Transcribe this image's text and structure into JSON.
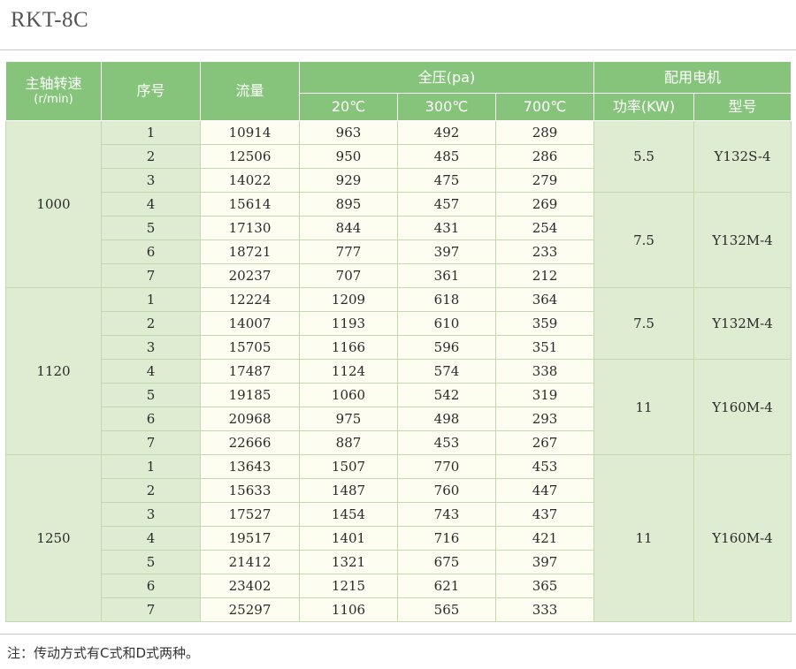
{
  "title": "RKT-8C",
  "headers": {
    "speed": "主轴转速",
    "speed_unit": "(r/min)",
    "no": "序号",
    "flow": "流量",
    "pressure": "全压(pa)",
    "motor": "配用电机",
    "t20": "20℃",
    "t300": "300℃",
    "t700": "700℃",
    "power": "功率(KW)",
    "model": "型号"
  },
  "groups": [
    {
      "speed": "1000",
      "motors": [
        {
          "power": "5.5",
          "model": "Y132S-4"
        },
        {
          "power": "7.5",
          "model": "Y132M-4"
        }
      ],
      "rows": [
        {
          "no": "1",
          "flow": "10914",
          "p20": "963",
          "p300": "492",
          "p700": "289"
        },
        {
          "no": "2",
          "flow": "12506",
          "p20": "950",
          "p300": "485",
          "p700": "286"
        },
        {
          "no": "3",
          "flow": "14022",
          "p20": "929",
          "p300": "475",
          "p700": "279"
        },
        {
          "no": "4",
          "flow": "15614",
          "p20": "895",
          "p300": "457",
          "p700": "269"
        },
        {
          "no": "5",
          "flow": "17130",
          "p20": "844",
          "p300": "431",
          "p700": "254"
        },
        {
          "no": "6",
          "flow": "18721",
          "p20": "777",
          "p300": "397",
          "p700": "233"
        },
        {
          "no": "7",
          "flow": "20237",
          "p20": "707",
          "p300": "361",
          "p700": "212"
        }
      ]
    },
    {
      "speed": "1120",
      "motors": [
        {
          "power": "7.5",
          "model": "Y132M-4"
        },
        {
          "power": "11",
          "model": "Y160M-4"
        }
      ],
      "rows": [
        {
          "no": "1",
          "flow": "12224",
          "p20": "1209",
          "p300": "618",
          "p700": "364"
        },
        {
          "no": "2",
          "flow": "14007",
          "p20": "1193",
          "p300": "610",
          "p700": "359"
        },
        {
          "no": "3",
          "flow": "15705",
          "p20": "1166",
          "p300": "596",
          "p700": "351"
        },
        {
          "no": "4",
          "flow": "17487",
          "p20": "1124",
          "p300": "574",
          "p700": "338"
        },
        {
          "no": "5",
          "flow": "19185",
          "p20": "1060",
          "p300": "542",
          "p700": "319"
        },
        {
          "no": "6",
          "flow": "20968",
          "p20": "975",
          "p300": "498",
          "p700": "293"
        },
        {
          "no": "7",
          "flow": "22666",
          "p20": "887",
          "p300": "453",
          "p700": "267"
        }
      ]
    },
    {
      "speed": "1250",
      "motors": [
        {
          "power": "11",
          "model": "Y160M-4"
        }
      ],
      "rows": [
        {
          "no": "1",
          "flow": "13643",
          "p20": "1507",
          "p300": "770",
          "p700": "453"
        },
        {
          "no": "2",
          "flow": "15633",
          "p20": "1487",
          "p300": "760",
          "p700": "447"
        },
        {
          "no": "3",
          "flow": "17527",
          "p20": "1454",
          "p300": "743",
          "p700": "437"
        },
        {
          "no": "4",
          "flow": "19517",
          "p20": "1401",
          "p300": "716",
          "p700": "421"
        },
        {
          "no": "5",
          "flow": "21412",
          "p20": "1321",
          "p300": "675",
          "p700": "397"
        },
        {
          "no": "6",
          "flow": "23402",
          "p20": "1215",
          "p300": "621",
          "p700": "365"
        },
        {
          "no": "7",
          "flow": "25297",
          "p20": "1106",
          "p300": "565",
          "p700": "333"
        }
      ]
    }
  ],
  "note": {
    "label": "注：",
    "text": "传动方式有C式和D式两种。"
  },
  "colors": {
    "header_bg": "#86c47c",
    "group_cell_bg": "#deedd2",
    "data_cell_bg": "#fdfdf2"
  }
}
